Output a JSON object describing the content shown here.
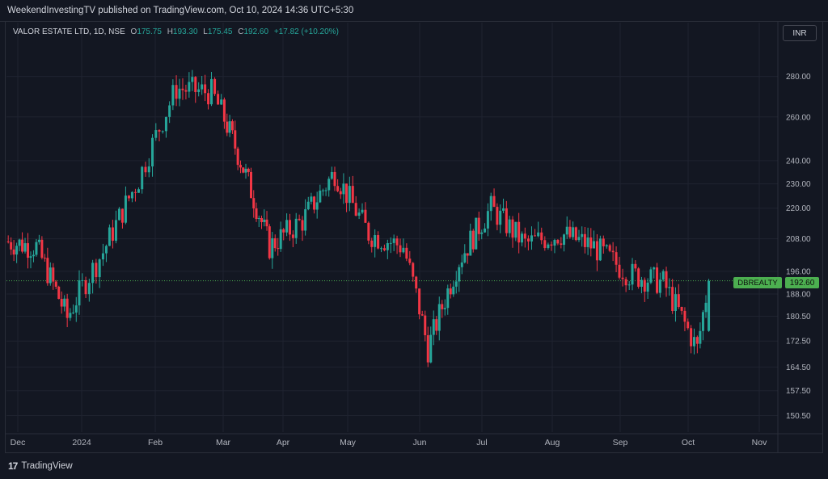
{
  "header": {
    "published": "WeekendInvestingTV published on TradingView.com, Oct 10, 2024 14:36 UTC+5:30"
  },
  "legend": {
    "symbol": "VALOR ESTATE LTD, 1D, NSE",
    "open_label": "O",
    "open": "175.75",
    "high_label": "H",
    "high": "193.30",
    "low_label": "L",
    "low": "175.45",
    "close_label": "C",
    "close": "192.60",
    "change": "+17.82 (+10.20%)"
  },
  "currency": "INR",
  "last_price": {
    "symbol_tag": "DBREALTY",
    "price": "192.60"
  },
  "footer": {
    "brand_mark": "17",
    "brand": "TradingView"
  },
  "colors": {
    "up": "#26a69a",
    "down": "#f23645",
    "bg": "#131722",
    "grid": "#1f2330",
    "label": "#4caf50"
  },
  "chart_data": {
    "type": "candlestick",
    "title": "VALOR ESTATE LTD, 1D, NSE",
    "xlabel": "",
    "ylabel": "",
    "y_scale": "log",
    "ylim": [
      146,
      300
    ],
    "y_ticks": [
      150.5,
      157.5,
      164.5,
      172.5,
      180.5,
      188.0,
      196.0,
      208.0,
      220.0,
      230.0,
      240.0,
      260.0,
      280.0
    ],
    "y_tick_labels": [
      "150.50",
      "157.50",
      "164.50",
      "172.50",
      "180.50",
      "188.00",
      "196.00",
      "208.00",
      "220.00",
      "230.00",
      "240.00",
      "260.00",
      "280.00"
    ],
    "x_tick_labels": [
      "Dec",
      "2024",
      "Feb",
      "Mar",
      "Apr",
      "May",
      "Jun",
      "Jul",
      "Aug",
      "Sep",
      "Oct",
      "Nov"
    ],
    "x_tick_dates": [
      "2023-12-01",
      "2024-01-01",
      "2024-02-01",
      "2024-03-01",
      "2024-04-01",
      "2024-05-01",
      "2024-06-01",
      "2024-07-01",
      "2024-08-01",
      "2024-09-01",
      "2024-10-01",
      "2024-11-01"
    ],
    "last_close": 192.6,
    "grid": true,
    "monthly_closes_approx": [
      {
        "date": "2023-11-25",
        "close": 207
      },
      {
        "date": "2023-12-10",
        "close": 205
      },
      {
        "date": "2023-12-25",
        "close": 180
      },
      {
        "date": "2024-01-10",
        "close": 203
      },
      {
        "date": "2024-01-25",
        "close": 232
      },
      {
        "date": "2024-02-10",
        "close": 274
      },
      {
        "date": "2024-02-25",
        "close": 272
      },
      {
        "date": "2024-03-10",
        "close": 240
      },
      {
        "date": "2024-03-25",
        "close": 205
      },
      {
        "date": "2024-04-10",
        "close": 215
      },
      {
        "date": "2024-04-25",
        "close": 235
      },
      {
        "date": "2024-05-10",
        "close": 210
      },
      {
        "date": "2024-05-25",
        "close": 205
      },
      {
        "date": "2024-06-05",
        "close": 170
      },
      {
        "date": "2024-06-20",
        "close": 200
      },
      {
        "date": "2024-07-05",
        "close": 220
      },
      {
        "date": "2024-07-20",
        "close": 206
      },
      {
        "date": "2024-08-05",
        "close": 210
      },
      {
        "date": "2024-08-20",
        "close": 205
      },
      {
        "date": "2024-09-05",
        "close": 195
      },
      {
        "date": "2024-09-20",
        "close": 192
      },
      {
        "date": "2024-10-05",
        "close": 170
      },
      {
        "date": "2024-10-10",
        "close": 192.6
      }
    ],
    "candles": []
  }
}
